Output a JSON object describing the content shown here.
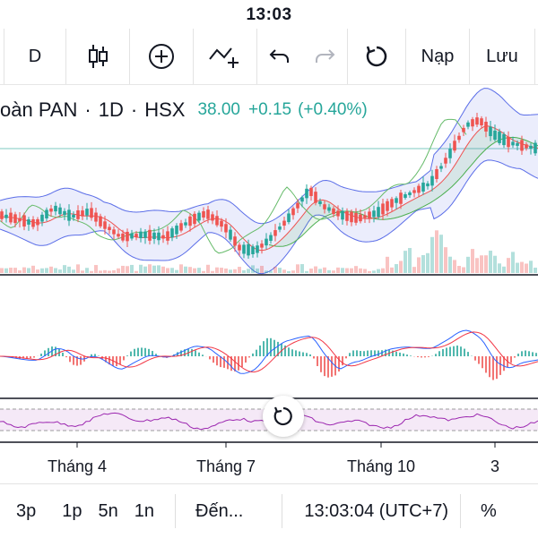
{
  "status_bar": {
    "time": "13:03"
  },
  "toolbar": {
    "interval": "D",
    "candle_icon": "candlestick-icon",
    "add_icon": "plus-circle-icon",
    "indicator_icon": "indicator-add-icon",
    "undo_icon": "undo-icon",
    "redo_icon": "redo-icon",
    "refresh_icon": "refresh-icon",
    "load_label": "Nạp",
    "save_label": "Lưu"
  },
  "legend": {
    "name": "oàn PAN",
    "interval": "1D",
    "exchange": "HSX",
    "price": "38.00",
    "change": "+0.15",
    "change_pct": "(+0.40%)"
  },
  "colors": {
    "up": "#26a69a",
    "down": "#ef5350",
    "bollinger": "#5b6ee8",
    "ma_green": "#4caf50",
    "macd_blue": "#2962ff",
    "signal_red": "#f23645",
    "rsi": "#9c27b0"
  },
  "x_axis": {
    "labels": [
      "Tháng 4",
      "Tháng 7",
      "Tháng 10",
      "3"
    ]
  },
  "bottom_bar": {
    "ranges": [
      "3p",
      "1p",
      "5n",
      "1n"
    ],
    "goto": "Đến...",
    "clock": "13:03:04 (UTC+7)",
    "percent": "%"
  }
}
